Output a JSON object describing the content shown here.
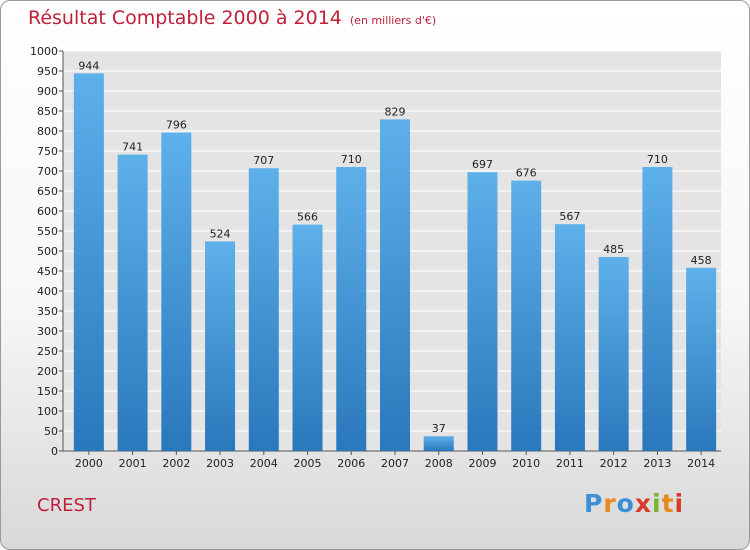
{
  "header": {
    "title": "Résultat Comptable 2000 à 2014",
    "unit": "(en milliers d'€)"
  },
  "footer": {
    "location": "CREST",
    "logo_letters": [
      "P",
      "r",
      "o",
      "x",
      "i",
      "t",
      "i"
    ],
    "logo_colors": [
      "#3a8fd6",
      "#e8891c",
      "#3a8fd6",
      "#d93a2b",
      "#7bb62a",
      "#e8891c",
      "#d93a2b"
    ]
  },
  "colors": {
    "title": "#c0203a",
    "bar_top": "#5eb0ea",
    "bar_bottom": "#2a78bc",
    "grid": "#ffffff",
    "plot_bg": "#e4e4e4"
  },
  "chart_data": {
    "type": "bar",
    "title": "Résultat Comptable 2000 à 2014",
    "ylabel": "(en milliers d'€)",
    "xlabel": "",
    "ylim": [
      0,
      1000
    ],
    "ytick_step": 50,
    "grid": true,
    "categories": [
      "2000",
      "2001",
      "2002",
      "2003",
      "2004",
      "2005",
      "2006",
      "2007",
      "2008",
      "2009",
      "2010",
      "2011",
      "2012",
      "2013",
      "2014"
    ],
    "values": [
      944,
      741,
      796,
      524,
      707,
      566,
      710,
      829,
      37,
      697,
      676,
      567,
      485,
      710,
      458
    ]
  }
}
